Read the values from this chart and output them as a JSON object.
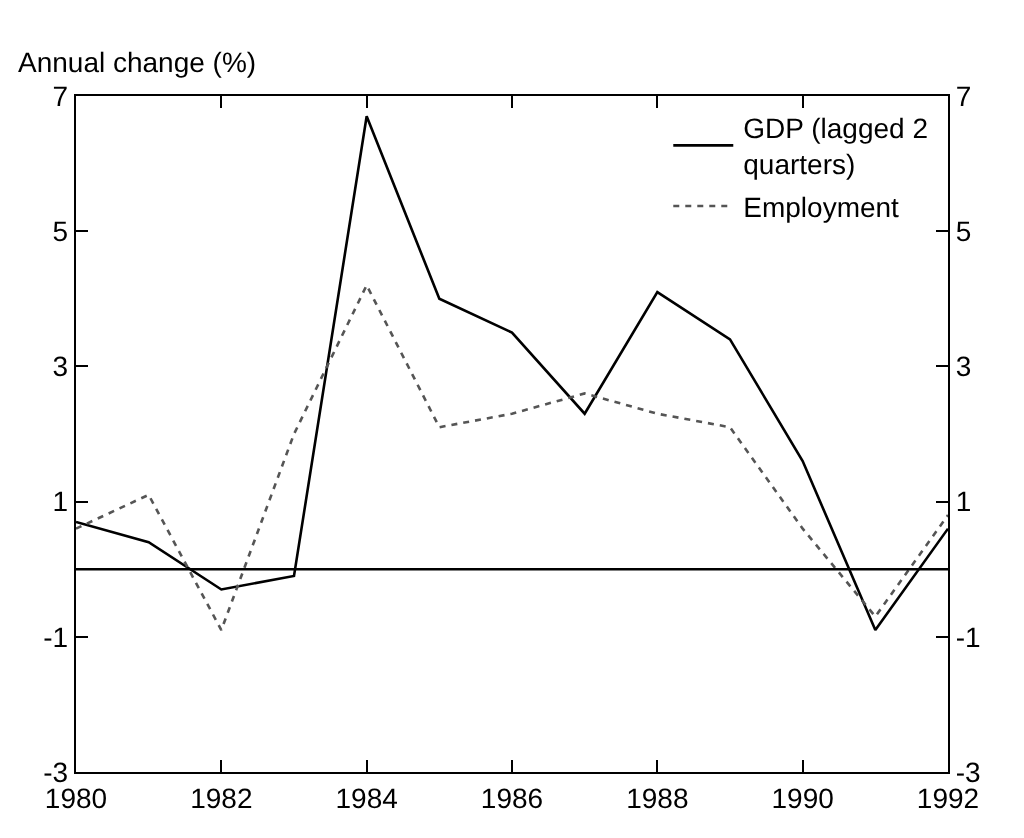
{
  "chart_data": {
    "type": "line",
    "ylabel": "Annual change (%)",
    "x": [
      1980,
      1981,
      1982,
      1983,
      1984,
      1985,
      1986,
      1987,
      1988,
      1989,
      1990,
      1991,
      1992
    ],
    "series": [
      {
        "name": "GDP (lagged 2 quarters)",
        "color": "#000000",
        "line_style": "solid",
        "values": [
          0.7,
          0.4,
          -0.3,
          -0.1,
          6.7,
          4.0,
          3.5,
          2.3,
          4.1,
          3.4,
          1.6,
          -0.9,
          0.6
        ]
      },
      {
        "name": "Employment",
        "color": "#555555",
        "line_style": "dotted",
        "values": [
          0.6,
          1.1,
          -0.9,
          2.0,
          4.2,
          2.1,
          2.3,
          2.6,
          2.3,
          2.1,
          0.6,
          -0.7,
          0.8
        ]
      }
    ],
    "xlim": [
      1980,
      1992
    ],
    "xticks": [
      1980,
      1982,
      1984,
      1986,
      1988,
      1990,
      1992
    ],
    "ylim": [
      -3,
      7
    ],
    "yticks": [
      -3,
      -1,
      1,
      3,
      5,
      7
    ],
    "y2lim": [
      -3,
      7
    ],
    "y2ticks": [
      -3,
      -1,
      1,
      3,
      5,
      7
    ],
    "ref_lines": [
      {
        "axis": "y",
        "value": 0,
        "label": null,
        "color": "#000000"
      }
    ],
    "legend": "top right",
    "marker": "none"
  }
}
